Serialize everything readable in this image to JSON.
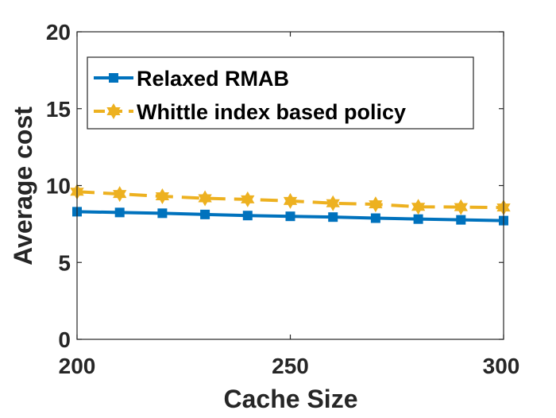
{
  "chart_data": {
    "type": "line",
    "xlabel": "Cache Size",
    "ylabel": "Average cost",
    "xlim": [
      200,
      300
    ],
    "ylim": [
      0,
      20
    ],
    "x_ticks": [
      "200",
      "250",
      "300"
    ],
    "y_ticks": [
      "0",
      "5",
      "10",
      "15",
      "20"
    ],
    "x": [
      200,
      210,
      220,
      230,
      240,
      250,
      260,
      270,
      280,
      290,
      300
    ],
    "series": [
      {
        "name": "Relaxed RMAB",
        "color": "#0072BD",
        "marker": "square",
        "line_style": "solid",
        "values": [
          8.3,
          8.25,
          8.2,
          8.12,
          8.05,
          8.0,
          7.95,
          7.88,
          7.82,
          7.77,
          7.72
        ]
      },
      {
        "name": "Whittle index based policy",
        "color": "#EDB120",
        "marker": "hexagram",
        "line_style": "dashed",
        "values": [
          9.6,
          9.45,
          9.3,
          9.17,
          9.1,
          9.0,
          8.85,
          8.78,
          8.62,
          8.6,
          8.57
        ]
      }
    ],
    "legend_position": "top-left",
    "grid": false
  }
}
